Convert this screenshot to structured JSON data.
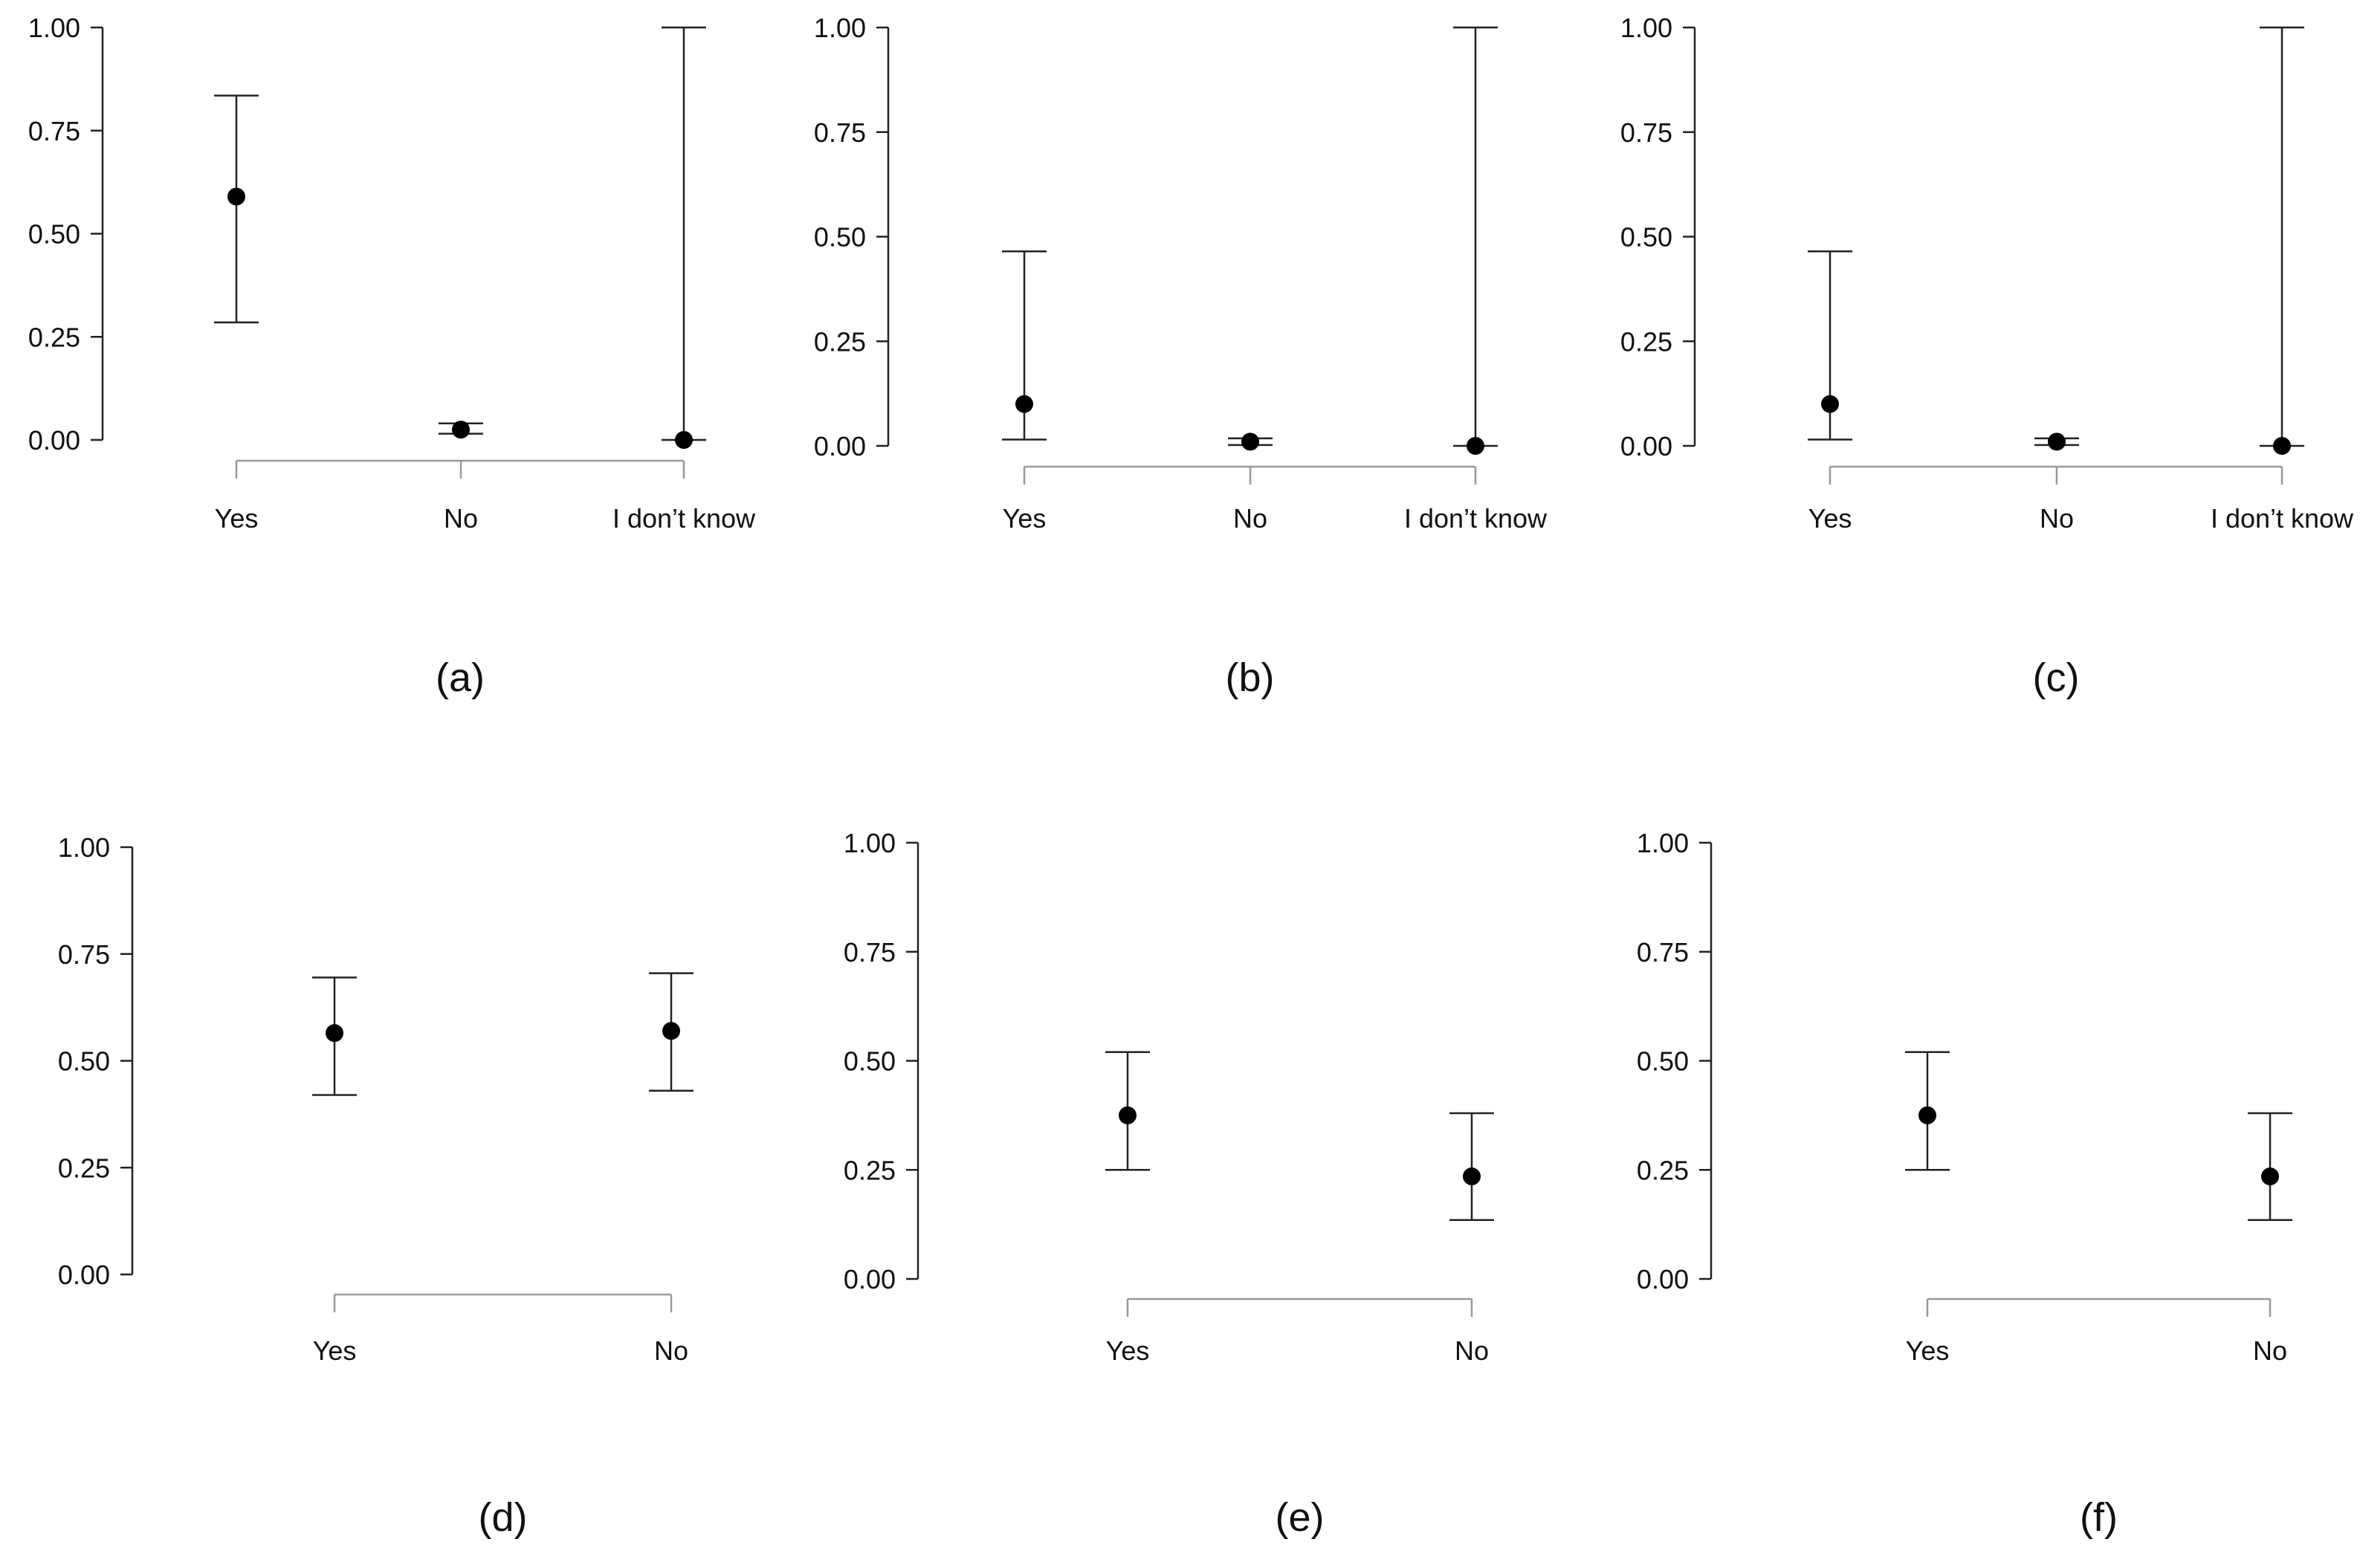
{
  "colors": {
    "axis": "#222222",
    "baseline": "#999999",
    "point": "#000000",
    "errorbar": "#222222",
    "background": "#ffffff"
  },
  "chart_data": [
    {
      "type": "scatter",
      "subtitle": "(a)",
      "categories": [
        "Yes",
        "No",
        "I don’t know"
      ],
      "values": [
        0.59,
        0.025,
        0.0
      ],
      "lower": [
        0.285,
        0.015,
        0.0
      ],
      "upper": [
        0.835,
        0.04,
        1.0
      ],
      "ylim": [
        0,
        1
      ],
      "yticks": [
        "0.00",
        "0.25",
        "0.50",
        "0.75",
        "1.00"
      ],
      "xlabel": "",
      "ylabel": ""
    },
    {
      "type": "scatter",
      "subtitle": "(b)",
      "categories": [
        "Yes",
        "No",
        "I don’t know"
      ],
      "values": [
        0.1,
        0.01,
        0.0
      ],
      "lower": [
        0.015,
        0.002,
        0.0
      ],
      "upper": [
        0.465,
        0.018,
        1.0
      ],
      "ylim": [
        0,
        1
      ],
      "yticks": [
        "0.00",
        "0.25",
        "0.50",
        "0.75",
        "1.00"
      ],
      "xlabel": "",
      "ylabel": ""
    },
    {
      "type": "scatter",
      "subtitle": "(c)",
      "categories": [
        "Yes",
        "No",
        "I don’t know"
      ],
      "values": [
        0.1,
        0.01,
        0.0
      ],
      "lower": [
        0.015,
        0.002,
        0.0
      ],
      "upper": [
        0.465,
        0.018,
        1.0
      ],
      "ylim": [
        0,
        1
      ],
      "yticks": [
        "0.00",
        "0.25",
        "0.50",
        "0.75",
        "1.00"
      ],
      "xlabel": "",
      "ylabel": ""
    },
    {
      "type": "scatter",
      "subtitle": "(d)",
      "categories": [
        "Yes",
        "No"
      ],
      "values": [
        0.565,
        0.57
      ],
      "lower": [
        0.42,
        0.43
      ],
      "upper": [
        0.695,
        0.705
      ],
      "ylim": [
        0,
        1
      ],
      "yticks": [
        "0.00",
        "0.25",
        "0.50",
        "0.75",
        "1.00"
      ],
      "xlabel": "",
      "ylabel": ""
    },
    {
      "type": "scatter",
      "subtitle": "(e)",
      "categories": [
        "Yes",
        "No"
      ],
      "values": [
        0.375,
        0.235
      ],
      "lower": [
        0.25,
        0.135
      ],
      "upper": [
        0.52,
        0.38
      ],
      "ylim": [
        0,
        1
      ],
      "yticks": [
        "0.00",
        "0.25",
        "0.50",
        "0.75",
        "1.00"
      ],
      "xlabel": "",
      "ylabel": ""
    },
    {
      "type": "scatter",
      "subtitle": "(f)",
      "categories": [
        "Yes",
        "No"
      ],
      "values": [
        0.375,
        0.235
      ],
      "lower": [
        0.25,
        0.135
      ],
      "upper": [
        0.52,
        0.38
      ],
      "ylim": [
        0,
        1
      ],
      "yticks": [
        "0.00",
        "0.25",
        "0.50",
        "0.75",
        "1.00"
      ],
      "xlabel": "",
      "ylabel": ""
    }
  ]
}
